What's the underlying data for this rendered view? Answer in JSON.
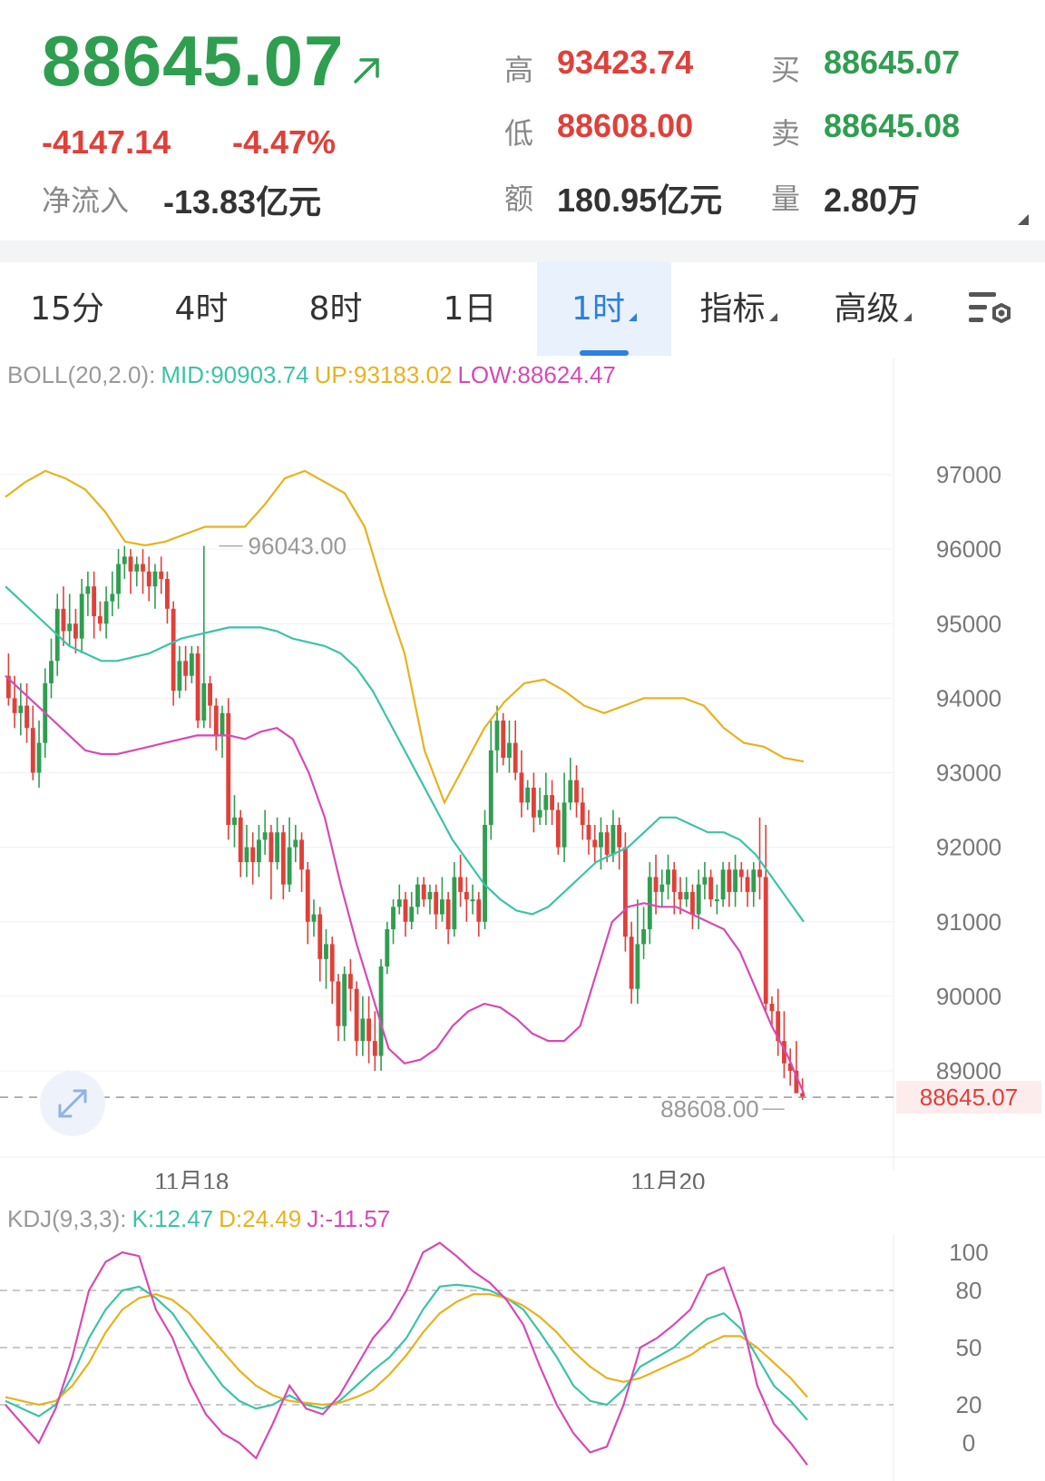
{
  "quote": {
    "price": "88645.07",
    "change": "-4147.14",
    "change_pct": "-4.47%",
    "net_inflow_label": "净流入",
    "net_inflow": "-13.83亿元",
    "high_label": "高",
    "high": "93423.74",
    "low_label": "低",
    "low": "88608.00",
    "amount_label": "额",
    "amount": "180.95亿元",
    "buy_label": "买",
    "buy": "88645.07",
    "sell_label": "卖",
    "sell": "88645.08",
    "volume_label": "量",
    "volume": "2.80万"
  },
  "tabs": [
    {
      "label": "15分",
      "active": false,
      "dropdown": false
    },
    {
      "label": "4时",
      "active": false,
      "dropdown": false
    },
    {
      "label": "8时",
      "active": false,
      "dropdown": false
    },
    {
      "label": "1日",
      "active": false,
      "dropdown": false
    },
    {
      "label": "1时",
      "active": true,
      "dropdown": true
    },
    {
      "label": "指标",
      "active": false,
      "dropdown": true
    },
    {
      "label": "高级",
      "active": false,
      "dropdown": true
    }
  ],
  "icons": {
    "settings": "chart-settings-icon",
    "trend": "arrow-up-right-icon",
    "expand": "expand-icon"
  },
  "colors": {
    "up": "#2f9e50",
    "down": "#e0403a",
    "mid": "#3cc3a8",
    "upper": "#e8b21d",
    "lower": "#d64ab5",
    "accent": "#2d7fe0"
  },
  "boll": {
    "name": "BOLL(20,2.0):",
    "mid": "MID:90903.74",
    "up": "UP:93183.02",
    "low": "LOW:88624.47"
  },
  "kdj": {
    "name": "KDJ(9,3,3):",
    "k": "K:12.47",
    "d": "D:24.49",
    "j": "J:-11.57"
  },
  "chart_data": [
    {
      "type": "candlestick",
      "interval": "1时",
      "ylim": [
        88200,
        98000
      ],
      "y_ticks": [
        97000,
        96000,
        95000,
        94000,
        93000,
        92000,
        91000,
        90000,
        89000
      ],
      "x_labels": [
        {
          "text": "11月18",
          "index": 30
        },
        {
          "text": "11月20",
          "index": 108
        }
      ],
      "max_marker": {
        "value": 96043.0,
        "label": "96043.00",
        "index": 33
      },
      "min_marker": {
        "value": 88608.0,
        "label": "88608.00"
      },
      "last_price_label": "88645.07",
      "last_price": 88645.07,
      "candles": [
        [
          94300,
          94000,
          94600,
          93900
        ],
        [
          94000,
          93800,
          94300,
          93600
        ],
        [
          93800,
          93900,
          94200,
          93500
        ],
        [
          93900,
          93600,
          94200,
          93400
        ],
        [
          93600,
          93000,
          93900,
          92900
        ],
        [
          93000,
          93400,
          93700,
          92800
        ],
        [
          93400,
          94200,
          94400,
          93200
        ],
        [
          94200,
          94500,
          94800,
          94000
        ],
        [
          94500,
          95200,
          95400,
          94300
        ],
        [
          95200,
          94900,
          95500,
          94700
        ],
        [
          94900,
          95000,
          95400,
          94700
        ],
        [
          95000,
          94800,
          95200,
          94600
        ],
        [
          94800,
          95400,
          95600,
          94600
        ],
        [
          95400,
          95500,
          95700,
          95100
        ],
        [
          95500,
          95100,
          95700,
          94800
        ],
        [
          95100,
          95000,
          95300,
          94900
        ],
        [
          95000,
          95300,
          95500,
          94800
        ],
        [
          95300,
          95400,
          95700,
          95100
        ],
        [
          95400,
          95800,
          96000,
          95200
        ],
        [
          95800,
          95900,
          96043,
          95600
        ],
        [
          95900,
          95700,
          96000,
          95400
        ],
        [
          95700,
          95800,
          95900,
          95500
        ],
        [
          95800,
          95700,
          96000,
          95400
        ],
        [
          95700,
          95500,
          95900,
          95300
        ],
        [
          95500,
          95700,
          95800,
          95200
        ],
        [
          95700,
          95600,
          95900,
          95400
        ],
        [
          95600,
          95200,
          95700,
          95000
        ],
        [
          95200,
          94100,
          95300,
          93900
        ],
        [
          94100,
          94500,
          94700,
          94000
        ],
        [
          94500,
          94300,
          94700,
          94100
        ],
        [
          94300,
          94600,
          94700,
          94200
        ],
        [
          94600,
          93700,
          94700,
          93600
        ],
        [
          93700,
          94200,
          96043,
          93600
        ],
        [
          94200,
          93900,
          94300,
          93600
        ],
        [
          93900,
          93500,
          94000,
          93300
        ],
        [
          93500,
          93800,
          93900,
          93200
        ],
        [
          93800,
          92300,
          94000,
          92100
        ],
        [
          92300,
          92400,
          92700,
          92000
        ],
        [
          92400,
          91800,
          92500,
          91600
        ],
        [
          91800,
          92000,
          92300,
          91600
        ],
        [
          92000,
          91800,
          92200,
          91500
        ],
        [
          91800,
          92100,
          92300,
          91600
        ],
        [
          92100,
          92200,
          92500,
          91900
        ],
        [
          92200,
          91800,
          92300,
          91300
        ],
        [
          91800,
          92200,
          92400,
          91700
        ],
        [
          92200,
          91500,
          92300,
          91300
        ],
        [
          91500,
          92000,
          92400,
          91400
        ],
        [
          92000,
          92100,
          92300,
          91800
        ],
        [
          92100,
          91700,
          92200,
          91400
        ],
        [
          91700,
          91000,
          91800,
          90700
        ],
        [
          91000,
          91100,
          91300,
          90800
        ],
        [
          91100,
          90500,
          91200,
          90200
        ],
        [
          90500,
          90700,
          90900,
          90100
        ],
        [
          90700,
          90200,
          90800,
          89900
        ],
        [
          90200,
          89600,
          90300,
          89400
        ],
        [
          89600,
          90300,
          90400,
          89400
        ],
        [
          90300,
          90100,
          90500,
          89800
        ],
        [
          90100,
          89400,
          90200,
          89200
        ],
        [
          89400,
          89700,
          90000,
          89200
        ],
        [
          89700,
          89400,
          90000,
          89100
        ],
        [
          89400,
          89200,
          89800,
          89000
        ],
        [
          89200,
          90400,
          90500,
          89000
        ],
        [
          90400,
          90900,
          91000,
          90300
        ],
        [
          90900,
          91200,
          91300,
          90700
        ],
        [
          91200,
          91300,
          91500,
          91100
        ],
        [
          91300,
          91000,
          91400,
          90800
        ],
        [
          91000,
          91200,
          91400,
          90900
        ],
        [
          91200,
          91500,
          91600,
          91100
        ],
        [
          91500,
          91300,
          91600,
          91200
        ],
        [
          91300,
          91400,
          91500,
          91100
        ],
        [
          91400,
          91100,
          91500,
          90900
        ],
        [
          91100,
          91300,
          91600,
          91000
        ],
        [
          91300,
          90900,
          91400,
          90700
        ],
        [
          90900,
          91600,
          91800,
          90800
        ],
        [
          91600,
          91400,
          91900,
          91200
        ],
        [
          91400,
          91300,
          91600,
          91000
        ],
        [
          91300,
          91300,
          91500,
          91100
        ],
        [
          91300,
          91000,
          91400,
          90800
        ],
        [
          91000,
          92300,
          92500,
          90900
        ],
        [
          92300,
          93300,
          93700,
          92100
        ],
        [
          93300,
          93700,
          93900,
          93000
        ],
        [
          93700,
          93200,
          93800,
          93100
        ],
        [
          93200,
          93400,
          93700,
          93000
        ],
        [
          93400,
          93000,
          93700,
          92900
        ],
        [
          93000,
          92600,
          93300,
          92400
        ],
        [
          92600,
          92800,
          92900,
          92500
        ],
        [
          92800,
          92400,
          93000,
          92200
        ],
        [
          92400,
          92500,
          92800,
          92300
        ],
        [
          92500,
          92700,
          93000,
          92300
        ],
        [
          92700,
          92500,
          92900,
          92300
        ],
        [
          92500,
          92000,
          92600,
          91900
        ],
        [
          92000,
          92600,
          93000,
          91800
        ],
        [
          92600,
          92900,
          93200,
          92500
        ],
        [
          92900,
          92600,
          93100,
          92400
        ],
        [
          92600,
          92300,
          92800,
          92100
        ],
        [
          92300,
          92100,
          92500,
          91900
        ],
        [
          92100,
          92000,
          92300,
          91800
        ],
        [
          92000,
          92200,
          92400,
          91700
        ],
        [
          92200,
          91900,
          92300,
          91800
        ],
        [
          91900,
          92300,
          92500,
          91800
        ],
        [
          92300,
          92000,
          92400,
          91700
        ],
        [
          92000,
          90800,
          92200,
          90600
        ],
        [
          90800,
          90100,
          91000,
          89900
        ],
        [
          90100,
          90700,
          91300,
          89900
        ],
        [
          90700,
          90900,
          91200,
          90500
        ],
        [
          90900,
          91600,
          91800,
          90700
        ],
        [
          91600,
          91400,
          91900,
          91100
        ],
        [
          91400,
          91500,
          91700,
          91200
        ],
        [
          91500,
          91700,
          91900,
          91300
        ],
        [
          91700,
          91400,
          91800,
          91100
        ],
        [
          91400,
          91300,
          91600,
          91100
        ],
        [
          91300,
          91400,
          91600,
          91200
        ],
        [
          91400,
          91100,
          91500,
          90900
        ],
        [
          91100,
          91500,
          91700,
          90900
        ],
        [
          91500,
          91600,
          91800,
          91300
        ],
        [
          91600,
          91300,
          91700,
          91200
        ],
        [
          91300,
          91300,
          91500,
          91100
        ],
        [
          91300,
          91700,
          91800,
          91200
        ],
        [
          91700,
          91400,
          91800,
          91200
        ],
        [
          91400,
          91700,
          91900,
          91200
        ],
        [
          91700,
          91600,
          91800,
          91400
        ],
        [
          91600,
          91400,
          91700,
          91200
        ],
        [
          91400,
          91700,
          91800,
          91200
        ],
        [
          91700,
          91600,
          92400,
          91300
        ],
        [
          91600,
          89900,
          92300,
          89800
        ],
        [
          89900,
          89800,
          90000,
          89600
        ],
        [
          89800,
          89400,
          90100,
          89200
        ],
        [
          89400,
          89100,
          89800,
          88900
        ],
        [
          89100,
          89000,
          89300,
          88800
        ],
        [
          89000,
          88700,
          89400,
          88700
        ],
        [
          88700,
          88645.07,
          88900,
          88608
        ]
      ],
      "boll_mid": [
        95500,
        95300,
        95100,
        94900,
        94700,
        94600,
        94500,
        94500,
        94550,
        94600,
        94700,
        94800,
        94850,
        94900,
        94950,
        94950,
        94950,
        94900,
        94800,
        94750,
        94700,
        94600,
        94400,
        94100,
        93700,
        93300,
        92900,
        92500,
        92100,
        91800,
        91500,
        91300,
        91150,
        91100,
        91200,
        91400,
        91600,
        91800,
        91900,
        92000,
        92200,
        92400,
        92400,
        92300,
        92200,
        92200,
        92100,
        91900,
        91600,
        91300,
        91000
      ],
      "boll_up": [
        96700,
        96900,
        97050,
        96950,
        96800,
        96500,
        96100,
        96050,
        96100,
        96200,
        96300,
        96300,
        96300,
        96600,
        96950,
        97050,
        96900,
        96750,
        96300,
        95400,
        94600,
        93300,
        92600,
        93100,
        93600,
        93950,
        94200,
        94250,
        94100,
        93900,
        93800,
        93900,
        94000,
        94000,
        94000,
        93900,
        93600,
        93400,
        93350,
        93200,
        93150
      ],
      "boll_low": [
        94300,
        94100,
        93900,
        93700,
        93500,
        93300,
        93250,
        93250,
        93300,
        93350,
        93400,
        93450,
        93500,
        93500,
        93500,
        93450,
        93550,
        93600,
        93450,
        93000,
        92400,
        91500,
        90700,
        90000,
        89300,
        89100,
        89150,
        89300,
        89600,
        89800,
        89900,
        89850,
        89700,
        89500,
        89400,
        89400,
        89600,
        90300,
        91000,
        91200,
        91250,
        91200,
        91200,
        91100,
        91000,
        90900,
        90600,
        90100,
        89600,
        89200,
        88700
      ],
      "max_candles_visible": 123
    },
    {
      "type": "line",
      "indicator": "KDJ(9,3,3)",
      "ylim": [
        -20,
        115
      ],
      "y_ticks": [
        100,
        80,
        50,
        20,
        0
      ],
      "reference_lines": [
        80,
        50,
        20
      ],
      "series": [
        {
          "name": "K",
          "values": [
            22,
            18,
            14,
            20,
            35,
            55,
            70,
            80,
            82,
            76,
            68,
            55,
            42,
            30,
            22,
            18,
            20,
            25,
            20,
            18,
            22,
            30,
            38,
            45,
            55,
            70,
            82,
            83,
            82,
            80,
            76,
            70,
            58,
            45,
            30,
            22,
            20,
            28,
            40,
            45,
            50,
            58,
            65,
            68,
            60,
            45,
            30,
            22,
            12
          ]
        },
        {
          "name": "D",
          "values": [
            24,
            22,
            20,
            22,
            30,
            42,
            58,
            70,
            76,
            78,
            75,
            68,
            58,
            48,
            38,
            30,
            25,
            22,
            21,
            20,
            21,
            24,
            28,
            36,
            46,
            58,
            68,
            74,
            78,
            78,
            76,
            72,
            66,
            58,
            48,
            40,
            34,
            32,
            34,
            38,
            42,
            46,
            52,
            56,
            56,
            50,
            42,
            34,
            24
          ]
        },
        {
          "name": "J",
          "values": [
            20,
            10,
            0,
            18,
            45,
            80,
            95,
            100,
            98,
            70,
            55,
            32,
            15,
            5,
            0,
            -8,
            10,
            30,
            18,
            15,
            25,
            40,
            55,
            65,
            80,
            100,
            105,
            98,
            90,
            84,
            75,
            62,
            40,
            20,
            5,
            -5,
            -2,
            20,
            50,
            55,
            62,
            70,
            88,
            92,
            68,
            30,
            10,
            0,
            -11.57
          ]
        }
      ]
    }
  ]
}
